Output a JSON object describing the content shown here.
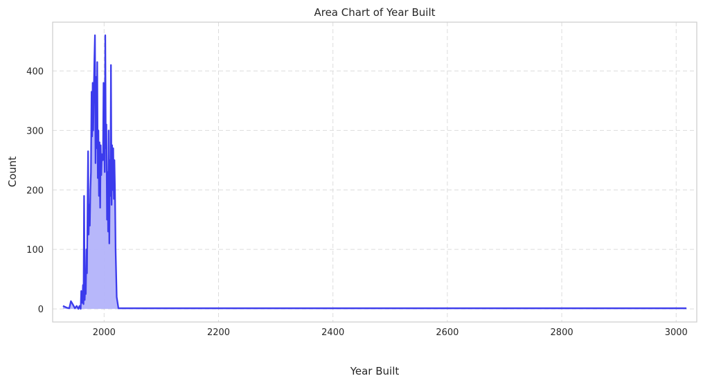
{
  "chart_data": {
    "type": "area",
    "title": "Area Chart of Year Built",
    "xlabel": "Year Built",
    "ylabel": "Count",
    "xlim": [
      1910,
      3036
    ],
    "ylim": [
      -22,
      482
    ],
    "xticks": [
      2000,
      2200,
      2400,
      2600,
      2800,
      3000
    ],
    "yticks": [
      0,
      100,
      200,
      300,
      400
    ],
    "grid": true,
    "colors": {
      "line": "#3b3bec",
      "fill": "#b3b3fa",
      "grid": "#dcdcdc",
      "frame": "#cccccc"
    },
    "series": [
      {
        "name": "Year Built",
        "points": [
          [
            1928,
            5
          ],
          [
            1935,
            2
          ],
          [
            1939,
            1
          ],
          [
            1942,
            13
          ],
          [
            1945,
            8
          ],
          [
            1949,
            1
          ],
          [
            1952,
            5
          ],
          [
            1955,
            0
          ],
          [
            1957,
            5
          ],
          [
            1959,
            0
          ],
          [
            1960,
            30
          ],
          [
            1962,
            10
          ],
          [
            1963,
            40
          ],
          [
            1964,
            8
          ],
          [
            1965,
            190
          ],
          [
            1966,
            15
          ],
          [
            1967,
            40
          ],
          [
            1968,
            25
          ],
          [
            1969,
            100
          ],
          [
            1970,
            60
          ],
          [
            1971,
            170
          ],
          [
            1972,
            265
          ],
          [
            1973,
            125
          ],
          [
            1974,
            175
          ],
          [
            1975,
            140
          ],
          [
            1976,
            200
          ],
          [
            1977,
            230
          ],
          [
            1978,
            365
          ],
          [
            1979,
            290
          ],
          [
            1980,
            380
          ],
          [
            1981,
            300
          ],
          [
            1982,
            370
          ],
          [
            1983,
            420
          ],
          [
            1984,
            460
          ],
          [
            1985,
            245
          ],
          [
            1986,
            390
          ],
          [
            1987,
            270
          ],
          [
            1988,
            415
          ],
          [
            1989,
            220
          ],
          [
            1990,
            300
          ],
          [
            1991,
            190
          ],
          [
            1992,
            280
          ],
          [
            1993,
            170
          ],
          [
            1994,
            275
          ],
          [
            1995,
            225
          ],
          [
            1996,
            260
          ],
          [
            1997,
            250
          ],
          [
            1998,
            250
          ],
          [
            1999,
            380
          ],
          [
            2000,
            300
          ],
          [
            2001,
            230
          ],
          [
            2002,
            460
          ],
          [
            2003,
            270
          ],
          [
            2004,
            310
          ],
          [
            2005,
            150
          ],
          [
            2006,
            230
          ],
          [
            2007,
            130
          ],
          [
            2008,
            300
          ],
          [
            2009,
            110
          ],
          [
            2010,
            250
          ],
          [
            2011,
            190
          ],
          [
            2012,
            410
          ],
          [
            2013,
            175
          ],
          [
            2014,
            275
          ],
          [
            2015,
            200
          ],
          [
            2016,
            270
          ],
          [
            2017,
            185
          ],
          [
            2018,
            250
          ],
          [
            2019,
            200
          ],
          [
            2020,
            100
          ],
          [
            2022,
            20
          ],
          [
            2025,
            1
          ],
          [
            3018,
            1
          ]
        ]
      }
    ]
  }
}
